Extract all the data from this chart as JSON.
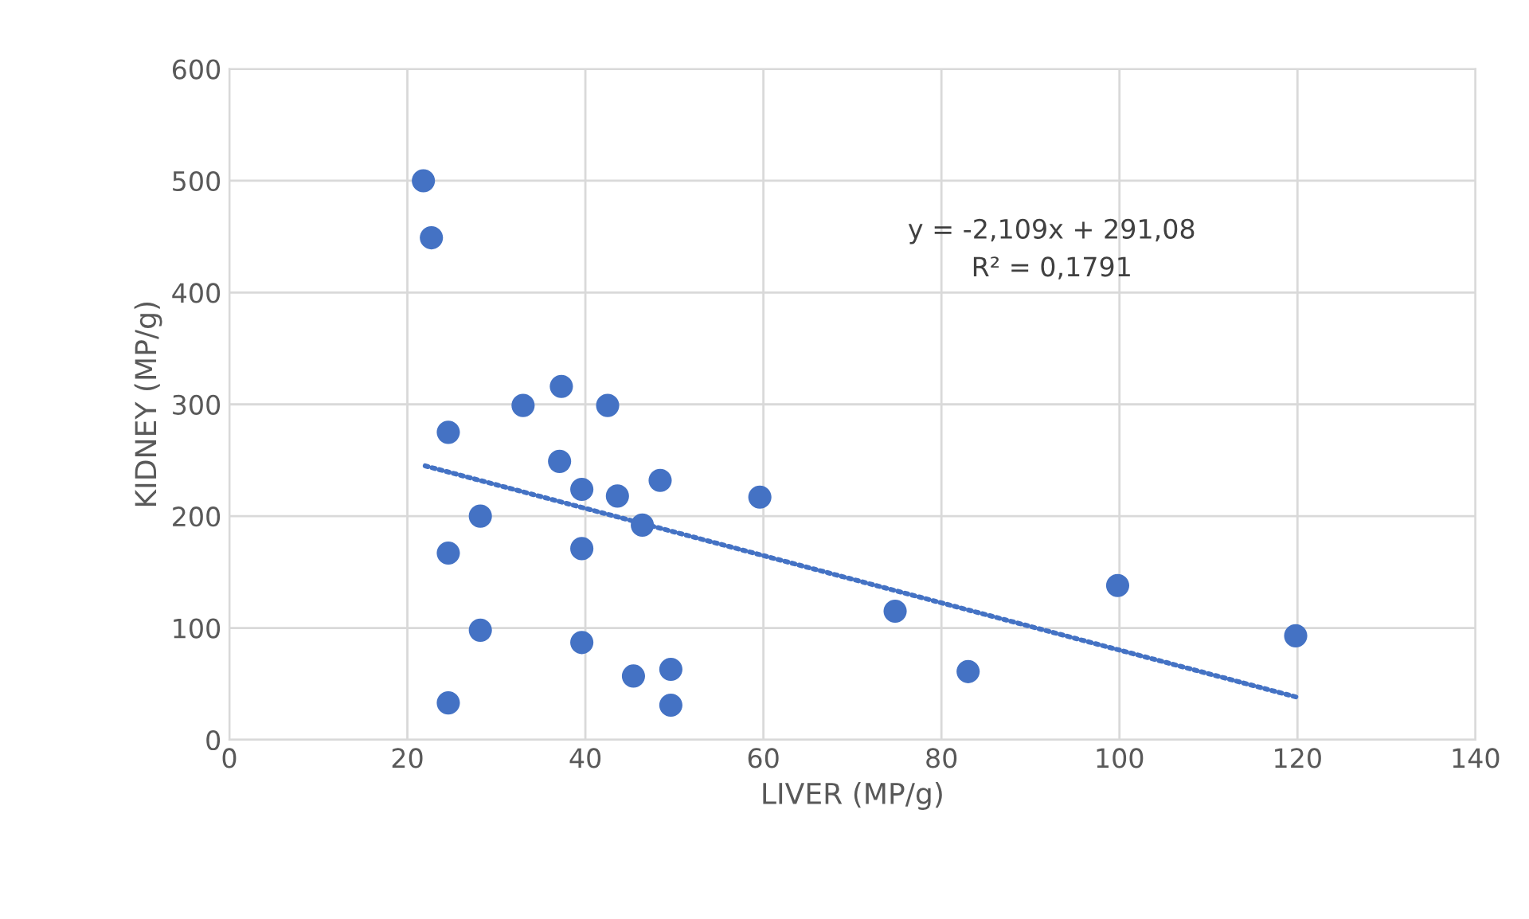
{
  "chart_data": {
    "type": "scatter",
    "xlabel": "LIVER (MP/g)",
    "ylabel": "KIDNEY (MP/g)",
    "xlim": [
      0,
      140
    ],
    "xticks": [
      0,
      20,
      40,
      60,
      80,
      100,
      120,
      140
    ],
    "ylim": [
      0,
      600
    ],
    "yticks": [
      0,
      100,
      200,
      300,
      400,
      500,
      600
    ],
    "grid": true,
    "legend": false,
    "series": [
      {
        "marker": "circle",
        "color": "#4472c4",
        "x": [
          21.8,
          22.7,
          24.6,
          24.6,
          24.6,
          28.2,
          28.2,
          33.0,
          37.3,
          37.1,
          39.6,
          39.6,
          39.6,
          42.5,
          43.6,
          45.4,
          46.4,
          48.4,
          49.6,
          49.6,
          59.6,
          74.8,
          83.0,
          99.8,
          119.8
        ],
        "values": [
          500,
          449,
          275,
          167,
          33,
          200,
          98,
          299,
          316,
          249,
          224,
          171,
          87,
          299,
          218,
          57,
          192,
          232,
          63,
          31,
          217,
          115,
          61,
          138,
          93
        ]
      },
      {
        "type": "line",
        "marker": "none",
        "color": "#4472c4",
        "line_style": "dotted",
        "x": [
          22,
          120
        ],
        "values": [
          245,
          38
        ]
      }
    ],
    "annotations": [
      "y = -2,109x + 291,08\nR² = 0,1791"
    ]
  }
}
